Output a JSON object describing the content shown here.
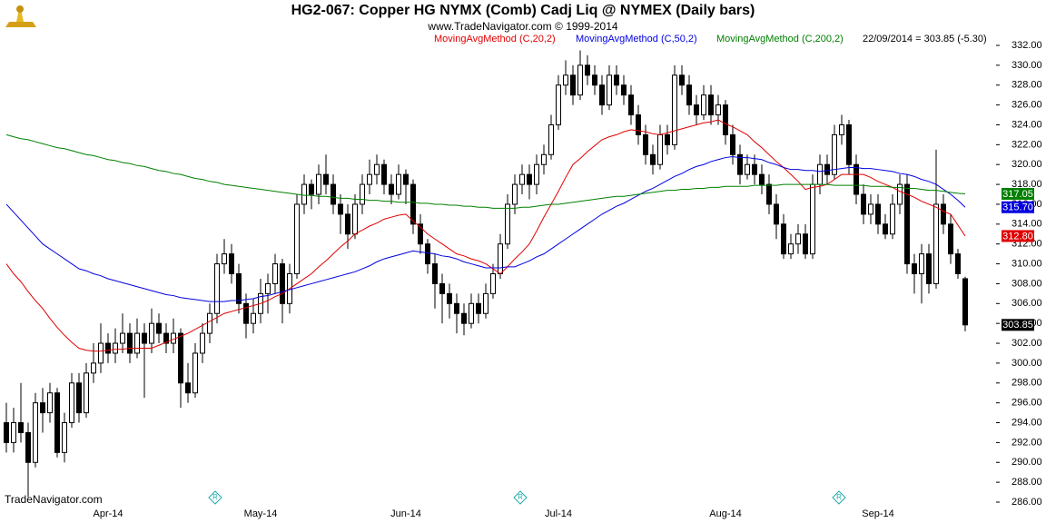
{
  "chart_data": {
    "type": "candlestick",
    "title": "HG2-067:  Copper HG NYMX (Comb) Cadj Liq @ NYMEX  (Daily bars)",
    "subtitle": "www.TradeNavigator.com © 1999-2014",
    "info": "22/09/2014 = 303.85 (-5.30)",
    "watermark": "TradeNavigator.com",
    "up_color": "#ffffff",
    "down_color": "#000000",
    "ylim": [
      286,
      332
    ],
    "yticks": [
      {
        "value": 286,
        "label": "286.00"
      },
      {
        "value": 288,
        "label": "288.00"
      },
      {
        "value": 290,
        "label": "290.00"
      },
      {
        "value": 292,
        "label": "292.00"
      },
      {
        "value": 294,
        "label": "294.00"
      },
      {
        "value": 296,
        "label": "296.00"
      },
      {
        "value": 298,
        "label": "298.00"
      },
      {
        "value": 300,
        "label": "300.00"
      },
      {
        "value": 302,
        "label": "302.00"
      },
      {
        "value": 304,
        "label": "304.00"
      },
      {
        "value": 306,
        "label": "306.00"
      },
      {
        "value": 308,
        "label": "308.00"
      },
      {
        "value": 310,
        "label": "310.00"
      },
      {
        "value": 312,
        "label": "312.00"
      },
      {
        "value": 314,
        "label": "314.00"
      },
      {
        "value": 316,
        "label": "316.00"
      },
      {
        "value": 318,
        "label": "318.00"
      },
      {
        "value": 320,
        "label": "320.00"
      },
      {
        "value": 322,
        "label": "322.00"
      },
      {
        "value": 324,
        "label": "324.00"
      },
      {
        "value": 326,
        "label": "326.00"
      },
      {
        "value": 328,
        "label": "328.00"
      },
      {
        "value": 330,
        "label": "330.00"
      },
      {
        "value": 332,
        "label": "332.00"
      }
    ],
    "categories": [
      null,
      null,
      null,
      null,
      null,
      null,
      null,
      null,
      null,
      null,
      null,
      null,
      null,
      null,
      "Apr-14",
      null,
      null,
      null,
      null,
      null,
      null,
      null,
      null,
      null,
      null,
      null,
      null,
      null,
      null,
      null,
      null,
      null,
      null,
      null,
      null,
      "May-14",
      null,
      null,
      null,
      null,
      null,
      null,
      null,
      null,
      null,
      null,
      null,
      null,
      null,
      null,
      null,
      null,
      null,
      null,
      null,
      "Jun-14",
      null,
      null,
      null,
      null,
      null,
      null,
      null,
      null,
      null,
      null,
      null,
      null,
      null,
      null,
      null,
      null,
      null,
      null,
      null,
      null,
      "Jul-14",
      null,
      null,
      null,
      null,
      null,
      null,
      null,
      null,
      null,
      null,
      null,
      null,
      null,
      null,
      null,
      null,
      null,
      null,
      null,
      null,
      null,
      null,
      "Aug-14",
      null,
      null,
      null,
      null,
      null,
      null,
      null,
      null,
      null,
      null,
      null,
      null,
      null,
      null,
      null,
      null,
      null,
      null,
      null,
      null,
      "Sep-14",
      null,
      null,
      null,
      null,
      null,
      null,
      null,
      null,
      null,
      null,
      null,
      null
    ],
    "ohlc": [
      [
        294,
        296,
        291,
        292
      ],
      [
        292,
        295.5,
        291,
        294
      ],
      [
        294,
        298,
        292,
        293
      ],
      [
        293,
        294,
        286.5,
        290
      ],
      [
        290,
        297,
        289.5,
        296
      ],
      [
        296,
        297.5,
        293,
        295
      ],
      [
        295,
        298,
        294,
        297
      ],
      [
        297,
        297.5,
        290.5,
        291
      ],
      [
        291,
        295,
        290,
        294
      ],
      [
        294,
        299,
        293.5,
        298
      ],
      [
        298,
        299,
        294,
        295
      ],
      [
        295,
        300,
        294.5,
        299
      ],
      [
        299,
        302,
        298,
        300
      ],
      [
        300,
        304,
        299,
        302
      ],
      [
        302,
        303,
        300,
        301
      ],
      [
        301,
        303.5,
        300,
        302
      ],
      [
        302,
        305,
        301,
        303
      ],
      [
        303,
        304,
        300,
        301
      ],
      [
        301,
        304.5,
        300.5,
        303
      ],
      [
        303,
        304,
        296.5,
        302
      ],
      [
        302,
        305.5,
        301,
        304
      ],
      [
        304,
        305,
        302,
        303
      ],
      [
        303,
        304,
        301,
        302
      ],
      [
        302,
        304.5,
        301,
        303
      ],
      [
        303,
        303.5,
        295.5,
        298
      ],
      [
        298,
        300,
        296,
        297
      ],
      [
        297,
        302,
        296.5,
        301
      ],
      [
        301,
        304,
        300,
        303
      ],
      [
        303,
        306,
        302,
        305
      ],
      [
        305,
        311,
        304,
        310
      ],
      [
        310,
        312.5,
        309,
        311
      ],
      [
        311,
        312,
        308,
        309
      ],
      [
        309,
        310,
        305,
        306
      ],
      [
        306,
        307,
        302.5,
        304
      ],
      [
        304,
        306.5,
        303,
        305
      ],
      [
        305,
        308.5,
        304,
        307
      ],
      [
        307,
        309,
        305,
        308
      ],
      [
        308,
        311,
        307,
        310
      ],
      [
        310,
        310.5,
        304,
        306
      ],
      [
        306,
        310,
        305,
        309
      ],
      [
        309,
        317,
        308.5,
        316
      ],
      [
        316,
        319,
        315,
        318
      ],
      [
        318,
        318.5,
        315.5,
        317
      ],
      [
        317,
        320,
        316,
        319
      ],
      [
        319,
        321,
        317,
        318
      ],
      [
        318,
        319,
        315,
        316
      ],
      [
        316,
        317,
        313,
        315
      ],
      [
        315,
        316,
        311.5,
        313
      ],
      [
        313,
        317,
        312.5,
        316
      ],
      [
        316,
        319,
        315,
        318
      ],
      [
        318,
        320.5,
        317,
        319
      ],
      [
        319,
        321,
        318,
        320
      ],
      [
        320,
        320.5,
        317,
        318
      ],
      [
        318,
        319,
        316,
        317
      ],
      [
        317,
        320,
        316.5,
        319
      ],
      [
        319,
        319.5,
        316,
        318
      ],
      [
        318,
        318.5,
        313,
        314
      ],
      [
        314,
        315,
        311,
        312
      ],
      [
        312,
        312.5,
        309,
        310
      ],
      [
        310,
        311,
        305.5,
        308
      ],
      [
        308,
        309,
        304,
        307
      ],
      [
        307,
        308,
        304.5,
        306
      ],
      [
        306,
        307,
        303,
        305
      ],
      [
        305,
        306,
        302.8,
        304
      ],
      [
        304,
        307,
        303.5,
        306
      ],
      [
        306,
        307,
        304,
        305
      ],
      [
        305,
        308,
        304.5,
        307
      ],
      [
        307,
        310,
        306.5,
        309
      ],
      [
        309,
        313,
        308.5,
        312
      ],
      [
        312,
        317,
        311.5,
        316
      ],
      [
        316,
        319,
        315,
        318
      ],
      [
        318,
        320,
        317,
        319
      ],
      [
        319,
        320,
        316.5,
        318
      ],
      [
        318,
        321,
        317,
        320
      ],
      [
        320,
        322,
        319,
        321
      ],
      [
        321,
        325,
        320.5,
        324
      ],
      [
        324,
        329,
        323.5,
        328
      ],
      [
        328,
        330.5,
        327,
        329
      ],
      [
        329,
        330,
        326,
        327
      ],
      [
        327,
        331.5,
        326.5,
        330
      ],
      [
        330,
        331,
        328,
        329
      ],
      [
        329,
        330,
        327,
        328
      ],
      [
        328,
        329,
        325,
        326
      ],
      [
        326,
        330,
        325.5,
        329
      ],
      [
        329,
        330,
        327,
        328
      ],
      [
        328,
        329,
        326,
        327
      ],
      [
        327,
        328,
        324,
        325
      ],
      [
        325,
        326,
        322,
        323
      ],
      [
        323,
        324,
        320,
        321
      ],
      [
        321,
        322,
        319,
        320
      ],
      [
        320,
        324,
        319.5,
        323
      ],
      [
        323,
        324,
        321,
        322
      ],
      [
        322,
        330,
        321.5,
        329
      ],
      [
        329,
        330,
        327,
        328
      ],
      [
        328,
        329,
        325,
        326
      ],
      [
        326,
        327,
        324,
        325
      ],
      [
        325,
        328,
        324.5,
        327
      ],
      [
        327,
        328,
        324,
        325
      ],
      [
        325,
        327,
        324,
        326
      ],
      [
        326,
        326.5,
        322,
        323
      ],
      [
        323,
        324,
        320,
        321
      ],
      [
        321,
        322,
        318,
        319
      ],
      [
        319,
        321,
        318.5,
        320
      ],
      [
        320,
        321,
        318,
        319
      ],
      [
        319,
        320,
        317,
        318
      ],
      [
        318,
        319,
        315,
        316
      ],
      [
        316,
        317,
        312.5,
        314
      ],
      [
        314,
        315,
        310.5,
        311
      ],
      [
        311,
        313,
        310.5,
        312
      ],
      [
        312,
        314,
        311,
        313
      ],
      [
        313,
        314,
        310.5,
        311
      ],
      [
        311,
        319,
        310.5,
        318
      ],
      [
        318,
        321,
        317,
        320
      ],
      [
        320,
        321,
        318,
        319
      ],
      [
        319,
        324,
        318.5,
        323
      ],
      [
        323,
        325,
        322,
        324
      ],
      [
        324,
        324.5,
        319,
        320
      ],
      [
        320,
        321,
        316,
        317
      ],
      [
        317,
        318,
        314,
        315
      ],
      [
        315,
        317,
        314,
        316
      ],
      [
        316,
        317,
        313,
        314
      ],
      [
        314,
        315,
        312.5,
        313
      ],
      [
        313,
        317,
        312.5,
        316
      ],
      [
        316,
        319,
        315,
        318
      ],
      [
        318,
        319,
        309,
        310
      ],
      [
        310,
        311,
        307,
        309
      ],
      [
        309,
        312,
        306,
        311
      ],
      [
        311,
        312,
        307,
        308
      ],
      [
        308,
        321.5,
        307.5,
        316
      ],
      [
        316,
        317,
        313,
        314
      ],
      [
        314,
        315,
        310,
        311
      ],
      [
        311,
        311.5,
        308.5,
        309
      ],
      [
        308.5,
        308.7,
        303.2,
        303.85
      ]
    ],
    "close_label": "303.85",
    "series": [
      {
        "name": "MovingAvgMethod (C,20,2)",
        "color": "#e00000",
        "last_label": "312.80",
        "values": [
          310,
          309,
          308.2,
          307.2,
          306.3,
          305.5,
          304.5,
          303.6,
          302.8,
          302.1,
          301.5,
          301.3,
          301.2,
          301.2,
          301.3,
          301.4,
          301.4,
          301.5,
          301.5,
          301.5,
          301.5,
          301.8,
          302.1,
          302.4,
          302.7,
          303,
          303.4,
          303.8,
          304.2,
          304.6,
          305,
          305.2,
          305.4,
          305.6,
          305.8,
          306,
          306.3,
          306.7,
          307,
          307.5,
          308,
          308.5,
          309,
          309.7,
          310.3,
          311,
          311.7,
          312.3,
          313,
          313.4,
          313.8,
          314.1,
          314.5,
          314.7,
          314.9,
          315,
          314.3,
          313.7,
          313,
          312.5,
          312,
          311.5,
          311,
          310.8,
          310.5,
          310.3,
          310,
          309.5,
          309,
          309.7,
          310.5,
          311.2,
          312,
          313.3,
          314.7,
          316,
          317.3,
          318.7,
          320,
          320.6,
          321.3,
          321.9,
          322.5,
          322.8,
          323,
          323.3,
          323.5,
          323.4,
          323.3,
          323.1,
          323,
          323.2,
          323.4,
          323.6,
          323.8,
          324,
          324.2,
          324.3,
          324.5,
          324.1,
          323.8,
          323.4,
          323,
          322.3,
          321.7,
          321,
          320.3,
          319.7,
          319,
          318.3,
          317.5,
          317.7,
          317.8,
          318,
          318.5,
          319,
          319,
          319,
          319,
          318.7,
          318.3,
          318,
          317.7,
          317.3,
          317,
          316.7,
          316.3,
          316,
          315.7,
          315.3,
          315,
          313.9,
          312.8
        ]
      },
      {
        "name": "MovingAvgMethod (C,50,2)",
        "color": "#0000e0",
        "last_label": "315.70",
        "values": [
          316,
          315.2,
          314.4,
          313.6,
          312.8,
          312,
          311.5,
          311,
          310.5,
          310,
          309.5,
          309.3,
          309.0,
          308.8,
          308.5,
          308.3,
          308.1,
          307.9,
          307.7,
          307.5,
          307.3,
          307.1,
          306.9,
          306.8,
          306.6,
          306.5,
          306.4,
          306.3,
          306.2,
          306.2,
          306.2,
          306.3,
          306.3,
          306.4,
          306.5,
          306.7,
          306.8,
          307,
          307.2,
          307.4,
          307.6,
          307.8,
          308,
          308.2,
          308.4,
          308.6,
          308.8,
          309,
          309.2,
          309.5,
          309.8,
          310.2,
          310.5,
          310.7,
          310.9,
          311.1,
          311.3,
          311.2,
          311.1,
          311,
          310.8,
          310.7,
          310.5,
          310.2,
          310,
          309.8,
          309.6,
          309.6,
          309.6,
          309.7,
          309.7,
          310,
          310.3,
          310.7,
          311,
          311.5,
          312,
          312.5,
          313,
          313.5,
          314,
          314.5,
          315,
          315.4,
          315.8,
          316.1,
          316.5,
          316.9,
          317.3,
          317.6,
          318,
          318.4,
          318.8,
          319.1,
          319.5,
          319.8,
          320,
          320.3,
          320.5,
          320.7,
          320.8,
          320.7,
          320.7,
          320.6,
          320.5,
          320.2,
          320,
          319.7,
          319.5,
          319.5,
          319.4,
          319.4,
          319.3,
          319.4,
          319.5,
          319.6,
          319.7,
          319.7,
          319.6,
          319.6,
          319.5,
          319.4,
          319.3,
          319.1,
          319,
          318.8,
          318.5,
          318.3,
          318,
          317.5,
          317,
          316.4,
          315.7
        ]
      },
      {
        "name": "MovingAvgMethod (C,200,2)",
        "color": "#008000",
        "last_label": "317.05",
        "values": [
          323,
          322.8,
          322.6,
          322.5,
          322.3,
          322.1,
          321.9,
          321.7,
          321.6,
          321.4,
          321.2,
          321.0,
          320.9,
          320.7,
          320.5,
          320.4,
          320.2,
          320.1,
          319.9,
          319.8,
          319.6,
          319.4,
          319.3,
          319.1,
          319.0,
          318.8,
          318.6,
          318.5,
          318.3,
          318.2,
          318,
          317.9,
          317.8,
          317.7,
          317.6,
          317.5,
          317.4,
          317.3,
          317.2,
          317.1,
          317,
          316.9,
          316.9,
          316.8,
          316.8,
          316.7,
          316.6,
          316.6,
          316.5,
          316.5,
          316.4,
          316.4,
          316.3,
          316.3,
          316.2,
          316.2,
          316.2,
          316.1,
          316.1,
          316,
          316,
          315.9,
          315.9,
          315.8,
          315.8,
          315.7,
          315.7,
          315.6,
          315.6,
          315.6,
          315.6,
          315.7,
          315.7,
          315.8,
          315.9,
          316,
          316,
          316.1,
          316.2,
          316.3,
          316.4,
          316.5,
          316.6,
          316.7,
          316.8,
          316.8,
          316.9,
          317,
          317.1,
          317.2,
          317.3,
          317.4,
          317.4,
          317.5,
          317.5,
          317.6,
          317.6,
          317.7,
          317.7,
          317.8,
          317.8,
          317.8,
          317.8,
          317.9,
          317.9,
          317.9,
          317.9,
          318,
          318,
          318,
          318,
          318,
          318,
          318,
          317.9,
          317.9,
          317.9,
          317.9,
          317.9,
          317.8,
          317.8,
          317.8,
          317.7,
          317.7,
          317.6,
          317.6,
          317.5,
          317.4,
          317.4,
          317.3,
          317.2,
          317.1,
          317.05
        ]
      }
    ]
  }
}
